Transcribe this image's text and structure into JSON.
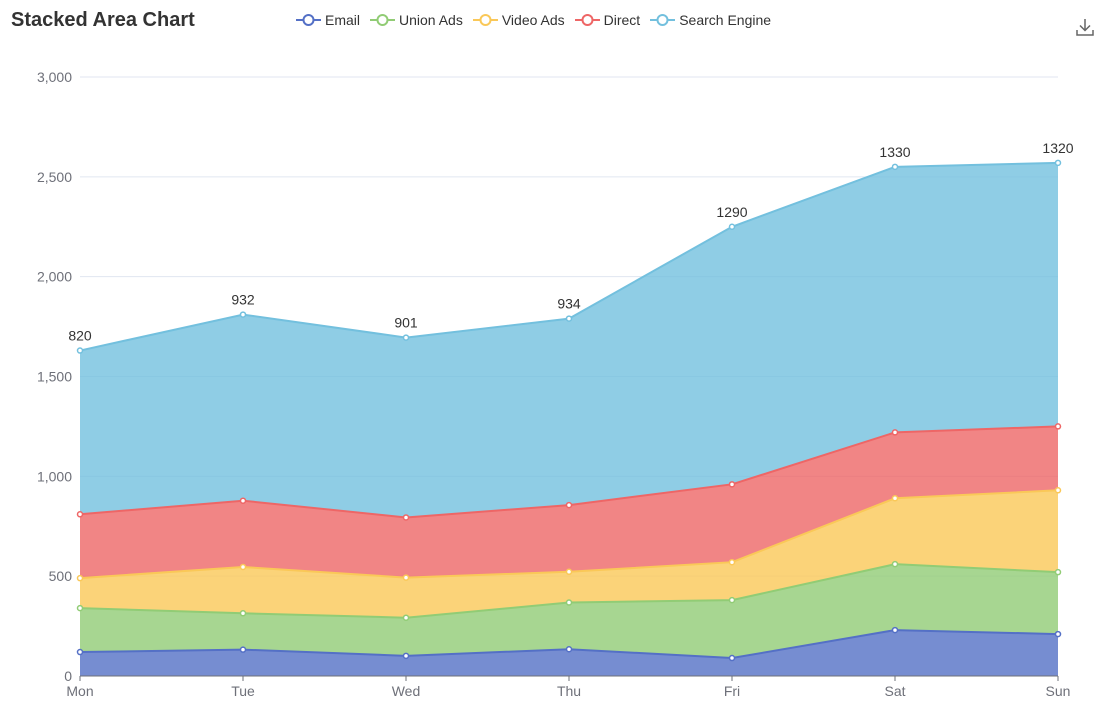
{
  "chart_data": {
    "type": "area",
    "stacked": true,
    "title": "Stacked Area Chart",
    "categories": [
      "Mon",
      "Tue",
      "Wed",
      "Thu",
      "Fri",
      "Sat",
      "Sun"
    ],
    "ylim": [
      0,
      3000
    ],
    "yticks": [
      0,
      500,
      1000,
      1500,
      2000,
      2500,
      3000
    ],
    "ytick_labels": [
      "0",
      "500",
      "1,000",
      "1,500",
      "2,000",
      "2,500",
      "3,000"
    ],
    "grid": true,
    "legend_position": "top",
    "series": [
      {
        "name": "Email",
        "color": "#5470c6",
        "values": [
          120,
          132,
          101,
          134,
          90,
          230,
          210
        ]
      },
      {
        "name": "Union Ads",
        "color": "#91cc75",
        "values": [
          220,
          182,
          191,
          234,
          290,
          330,
          310
        ]
      },
      {
        "name": "Video Ads",
        "color": "#fac858",
        "values": [
          150,
          232,
          201,
          154,
          190,
          330,
          410
        ]
      },
      {
        "name": "Direct",
        "color": "#ee6666",
        "values": [
          320,
          332,
          301,
          334,
          390,
          330,
          320
        ]
      },
      {
        "name": "Search Engine",
        "color": "#73c0de",
        "values": [
          820,
          932,
          901,
          934,
          1290,
          1330,
          1320
        ],
        "show_labels": true
      }
    ]
  },
  "toolbar": {
    "save_icon": "download-icon"
  }
}
